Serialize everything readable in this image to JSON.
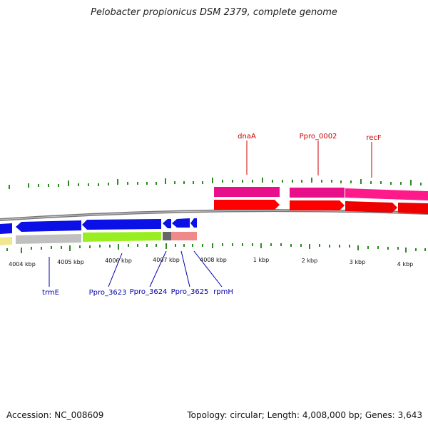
{
  "title": "Pelobacter propionicus DSM 2379, complete genome",
  "footer": {
    "accession": "Accession: NC_008609",
    "topology": "Topology: circular; Length: 4,008,000 bp; Genes: 3,643"
  },
  "ruler_labels": [
    "4004 kbp",
    "4005 kbp",
    "4006 kbp",
    "4007 kbp",
    "4008 kbp",
    "1 kbp",
    "2 kbp",
    "3 kbp",
    "4 kbp"
  ],
  "gene_labels_top": [
    "dnaA",
    "Ppro_0002",
    "recF"
  ],
  "gene_labels_bottom": [
    "trmE",
    "Ppro_3623",
    "Ppro_3624",
    "Ppro_3625",
    "rpmH"
  ],
  "colors": {
    "backbone": "#7a7a7a",
    "tick": "#2e8b22",
    "label_top": "#cc0000",
    "label_bottom": "#0000aa",
    "cds_forward": "#ff0000",
    "gene_forward": "#e8108a",
    "cds_reverse": "#0a10e6",
    "gene_reverse_grey": "#c0c0c0",
    "gene_reverse_green": "#99ee22",
    "gene_reverse_dark": "#666666",
    "gene_reverse_pink": "#f08a8a",
    "gene_yellow": "#f0e890"
  }
}
